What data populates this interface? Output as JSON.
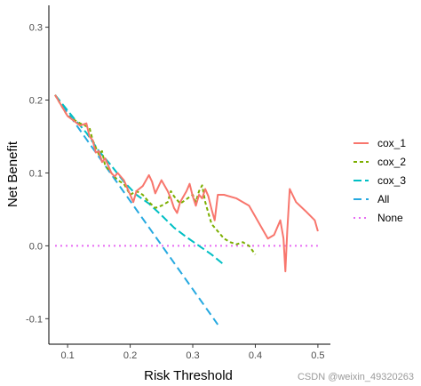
{
  "watermark": "CSDN @weixin_49320263",
  "chart_data": {
    "type": "line",
    "title": "",
    "xlabel": "Risk Threshold",
    "ylabel": "Net Benefit",
    "xlim": [
      0.07,
      0.52
    ],
    "ylim": [
      -0.135,
      0.33
    ],
    "xticks": [
      0.1,
      0.2,
      0.3,
      0.4,
      0.5
    ],
    "xtick_labels": [
      "0.1",
      "0.2",
      "0.3",
      "0.4",
      "0.5"
    ],
    "yticks": [
      -0.1,
      0.0,
      0.1,
      0.2,
      0.3
    ],
    "ytick_labels": [
      "-0.1",
      "0.0",
      "0.1",
      "0.2",
      "0.3"
    ],
    "grid": false,
    "legend_position": "right",
    "series": [
      {
        "name": "cox_1",
        "color": "#F8766D",
        "dash": "solid",
        "points": [
          [
            0.08,
            0.207
          ],
          [
            0.1,
            0.178
          ],
          [
            0.12,
            0.165
          ],
          [
            0.13,
            0.168
          ],
          [
            0.135,
            0.15
          ],
          [
            0.14,
            0.145
          ],
          [
            0.145,
            0.128
          ],
          [
            0.15,
            0.13
          ],
          [
            0.155,
            0.115
          ],
          [
            0.16,
            0.12
          ],
          [
            0.165,
            0.11
          ],
          [
            0.17,
            0.1
          ],
          [
            0.175,
            0.095
          ],
          [
            0.18,
            0.1
          ],
          [
            0.19,
            0.09
          ],
          [
            0.2,
            0.07
          ],
          [
            0.205,
            0.06
          ],
          [
            0.21,
            0.075
          ],
          [
            0.22,
            0.082
          ],
          [
            0.23,
            0.097
          ],
          [
            0.235,
            0.088
          ],
          [
            0.24,
            0.072
          ],
          [
            0.25,
            0.09
          ],
          [
            0.26,
            0.075
          ],
          [
            0.265,
            0.065
          ],
          [
            0.27,
            0.052
          ],
          [
            0.275,
            0.045
          ],
          [
            0.28,
            0.06
          ],
          [
            0.29,
            0.075
          ],
          [
            0.295,
            0.085
          ],
          [
            0.3,
            0.068
          ],
          [
            0.305,
            0.055
          ],
          [
            0.31,
            0.07
          ],
          [
            0.315,
            0.065
          ],
          [
            0.32,
            0.078
          ],
          [
            0.325,
            0.068
          ],
          [
            0.33,
            0.05
          ],
          [
            0.335,
            0.035
          ],
          [
            0.34,
            0.07
          ],
          [
            0.35,
            0.07
          ],
          [
            0.37,
            0.065
          ],
          [
            0.38,
            0.06
          ],
          [
            0.39,
            0.055
          ],
          [
            0.4,
            0.04
          ],
          [
            0.41,
            0.025
          ],
          [
            0.42,
            0.01
          ],
          [
            0.43,
            0.015
          ],
          [
            0.44,
            0.035
          ],
          [
            0.445,
            0.01
          ],
          [
            0.448,
            -0.035
          ],
          [
            0.451,
            0.02
          ],
          [
            0.455,
            0.078
          ],
          [
            0.465,
            0.06
          ],
          [
            0.48,
            0.048
          ],
          [
            0.495,
            0.035
          ],
          [
            0.5,
            0.02
          ]
        ]
      },
      {
        "name": "cox_2",
        "color": "#7CAE00",
        "dash": "4 3",
        "points": [
          [
            0.08,
            0.207
          ],
          [
            0.1,
            0.178
          ],
          [
            0.12,
            0.168
          ],
          [
            0.135,
            0.162
          ],
          [
            0.14,
            0.145
          ],
          [
            0.15,
            0.125
          ],
          [
            0.155,
            0.13
          ],
          [
            0.16,
            0.11
          ],
          [
            0.17,
            0.1
          ],
          [
            0.18,
            0.09
          ],
          [
            0.19,
            0.085
          ],
          [
            0.2,
            0.07
          ],
          [
            0.21,
            0.075
          ],
          [
            0.22,
            0.07
          ],
          [
            0.23,
            0.06
          ],
          [
            0.24,
            0.052
          ],
          [
            0.25,
            0.055
          ],
          [
            0.26,
            0.06
          ],
          [
            0.265,
            0.075
          ],
          [
            0.27,
            0.068
          ],
          [
            0.28,
            0.058
          ],
          [
            0.29,
            0.064
          ],
          [
            0.3,
            0.07
          ],
          [
            0.305,
            0.06
          ],
          [
            0.31,
            0.075
          ],
          [
            0.315,
            0.083
          ],
          [
            0.32,
            0.06
          ],
          [
            0.325,
            0.045
          ],
          [
            0.33,
            0.03
          ],
          [
            0.34,
            0.02
          ],
          [
            0.35,
            0.01
          ],
          [
            0.36,
            0.005
          ],
          [
            0.37,
            0.002
          ],
          [
            0.38,
            0.005
          ],
          [
            0.39,
            0.0
          ],
          [
            0.4,
            -0.012
          ]
        ]
      },
      {
        "name": "cox_3",
        "color": "#00BFC4",
        "dash": "9 4",
        "points": [
          [
            0.08,
            0.207
          ],
          [
            0.11,
            0.175
          ],
          [
            0.13,
            0.155
          ],
          [
            0.15,
            0.13
          ],
          [
            0.17,
            0.11
          ],
          [
            0.19,
            0.088
          ],
          [
            0.21,
            0.07
          ],
          [
            0.23,
            0.058
          ],
          [
            0.25,
            0.042
          ],
          [
            0.27,
            0.025
          ],
          [
            0.29,
            0.012
          ],
          [
            0.31,
            0.0
          ],
          [
            0.33,
            -0.012
          ],
          [
            0.35,
            -0.026
          ]
        ]
      },
      {
        "name": "All",
        "color": "#26A9E0",
        "dash": "9 5",
        "points": [
          [
            0.08,
            0.207
          ],
          [
            0.34,
            -0.108
          ]
        ]
      },
      {
        "name": "None",
        "color": "#E76BF3",
        "dash": "2 4",
        "points": [
          [
            0.08,
            0.0
          ],
          [
            0.5,
            0.0
          ]
        ]
      }
    ]
  }
}
